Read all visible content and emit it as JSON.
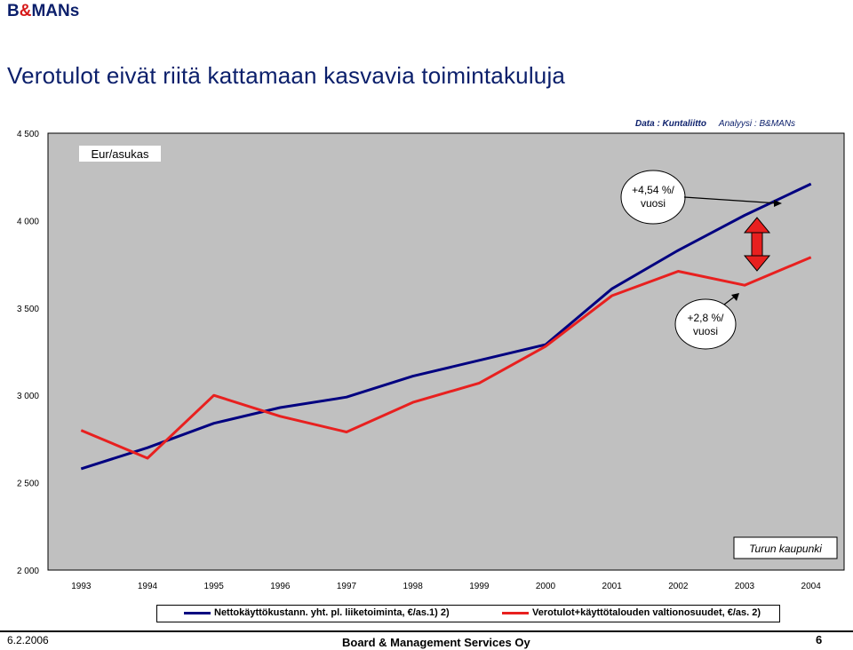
{
  "header": {
    "brand_b": "B",
    "brand_amp": "&",
    "brand_rest": "MANs",
    "title": "Verotulot eivät riitä kattamaan kasvavia toimintakuluja"
  },
  "chart_data": {
    "type": "line",
    "x": [
      "1993",
      "1994",
      "1995",
      "1996",
      "1997",
      "1998",
      "1999",
      "2000",
      "2001",
      "2002",
      "2003",
      "2004"
    ],
    "yticks": [
      "4 500",
      "4 000",
      "3 500",
      "3 000",
      "2 500",
      "2 000"
    ],
    "ylim": [
      2000,
      4500
    ],
    "grid": false,
    "plot_background": "#c0c0c0",
    "ylabel": "Eur/asukas",
    "source_label": "Data : Kuntaliitto",
    "analysis_label": "Analyysi : B&MANs",
    "city_label": "Turun kaupunki",
    "series": [
      {
        "name": "Nettokäyttökustann. yht. pl. liiketoiminta, €/as.1) 2)",
        "color": "#000080",
        "values": [
          2580,
          2700,
          2840,
          2930,
          2990,
          3110,
          3200,
          3290,
          3610,
          3830,
          4030,
          4210
        ]
      },
      {
        "name": "Verotulot+käyttötalouden valtionosuudet, €/as. 2)",
        "color": "#e8201f",
        "values": [
          2800,
          2640,
          3000,
          2880,
          2790,
          2960,
          3070,
          3280,
          3570,
          3710,
          3630,
          3790
        ]
      }
    ],
    "annotations": [
      {
        "text_line1": "+4,54 %/",
        "text_line2": "vuosi"
      },
      {
        "text_line1": "+2,8 %/",
        "text_line2": "vuosi"
      }
    ],
    "gap_arrow_color": "#e8201f"
  },
  "footer": {
    "date": "6.2.2006",
    "company": "Board & Management Services Oy",
    "page": "6"
  }
}
